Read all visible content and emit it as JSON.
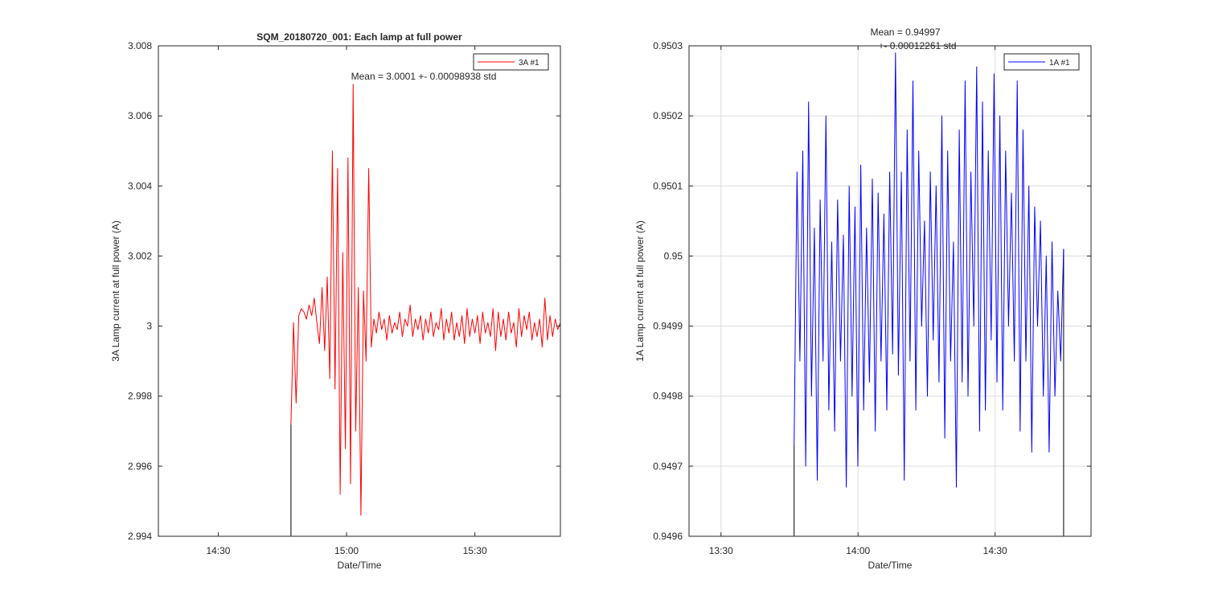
{
  "chart_data": [
    {
      "type": "line",
      "title": "SQM_20180720_001: Each lamp at full power",
      "xlabel": "Date/Time",
      "ylabel": "3A Lamp current at full power (A)",
      "xlim": [
        "14:16",
        "15:50"
      ],
      "ylim": [
        2.994,
        3.008
      ],
      "x_ticks": [
        "14:30",
        "15:00",
        "15:30"
      ],
      "y_ticks": [
        "2.994",
        "2.996",
        "2.998",
        "3",
        "3.002",
        "3.004",
        "3.006",
        "3.008"
      ],
      "grid": false,
      "legend_position": "top-right",
      "annotations": [
        "Mean = 3.0001 +- 0.00098938 std"
      ],
      "series": [
        {
          "name": "3A #1",
          "color": "#ff0000",
          "x_range": [
            "14:47",
            "15:50"
          ],
          "points": [
            [
              0,
              2.9972
            ],
            [
              1,
              3.0001
            ],
            [
              2,
              2.9978
            ],
            [
              3,
              3.0003
            ],
            [
              4,
              3.0005
            ],
            [
              5,
              3.0004
            ],
            [
              6,
              3.0002
            ],
            [
              7,
              3.0006
            ],
            [
              8,
              3.0003
            ],
            [
              9,
              3.0008
            ],
            [
              10,
              3.0001
            ],
            [
              11,
              2.9995
            ],
            [
              12,
              3.0011
            ],
            [
              13,
              2.9993
            ],
            [
              14,
              3.0014
            ],
            [
              15,
              2.9985
            ],
            [
              16,
              3.005
            ],
            [
              17,
              2.9982
            ],
            [
              18,
              3.0045
            ],
            [
              19,
              2.9952
            ],
            [
              20,
              3.0021
            ],
            [
              21,
              2.9965
            ],
            [
              22,
              3.0048
            ],
            [
              23,
              2.9955
            ],
            [
              24,
              3.0069
            ],
            [
              25,
              2.997
            ],
            [
              26,
              3.0011
            ],
            [
              27,
              2.9946
            ],
            [
              28,
              3.001
            ],
            [
              29,
              2.999
            ],
            [
              30,
              3.0045
            ],
            [
              31,
              2.9994
            ],
            [
              32,
              3.0002
            ],
            [
              33,
              2.9998
            ],
            [
              34,
              3.0004
            ],
            [
              35,
              2.9999
            ],
            [
              36,
              3.0002
            ],
            [
              37,
              2.9996
            ],
            [
              38,
              3.0003
            ],
            [
              39,
              2.9998
            ],
            [
              40,
              3.0001
            ],
            [
              41,
              2.9999
            ],
            [
              42,
              3.0004
            ],
            [
              43,
              2.9997
            ],
            [
              44,
              3.0002
            ],
            [
              45,
              3.0
            ],
            [
              46,
              3.0006
            ],
            [
              47,
              2.9997
            ],
            [
              48,
              3.0002
            ],
            [
              49,
              2.9999
            ],
            [
              50,
              3.0003
            ],
            [
              51,
              2.9996
            ],
            [
              52,
              3.0002
            ],
            [
              53,
              2.9998
            ],
            [
              54,
              3.0004
            ],
            [
              55,
              2.9997
            ],
            [
              56,
              3.0001
            ],
            [
              57,
              2.9999
            ],
            [
              58,
              3.0005
            ],
            [
              59,
              2.9996
            ],
            [
              60,
              3.0002
            ],
            [
              61,
              2.9998
            ],
            [
              62,
              3.0004
            ],
            [
              63,
              2.9996
            ],
            [
              64,
              3.0001
            ],
            [
              65,
              2.9997
            ],
            [
              66,
              3.0003
            ],
            [
              67,
              2.9995
            ],
            [
              68,
              3.0005
            ],
            [
              69,
              2.9997
            ],
            [
              70,
              3.0002
            ],
            [
              71,
              2.9998
            ],
            [
              72,
              3.0003
            ],
            [
              73,
              2.9995
            ],
            [
              74,
              3.0004
            ],
            [
              75,
              2.9998
            ],
            [
              76,
              3.0001
            ],
            [
              77,
              2.9997
            ],
            [
              78,
              3.0005
            ],
            [
              79,
              2.9993
            ],
            [
              80,
              3.0004
            ],
            [
              81,
              2.9997
            ],
            [
              82,
              3.0002
            ],
            [
              83,
              2.9996
            ],
            [
              84,
              3.0004
            ],
            [
              85,
              2.9998
            ],
            [
              86,
              3.0001
            ],
            [
              87,
              2.9994
            ],
            [
              88,
              3.0005
            ],
            [
              89,
              2.9997
            ],
            [
              90,
              3.0003
            ],
            [
              91,
              2.9999
            ],
            [
              92,
              3.0004
            ],
            [
              93,
              2.9996
            ],
            [
              94,
              3.0001
            ],
            [
              95,
              2.9997
            ],
            [
              96,
              3.0002
            ],
            [
              97,
              2.9994
            ],
            [
              98,
              3.0008
            ],
            [
              99,
              2.9996
            ],
            [
              100,
              3.0003
            ],
            [
              101,
              2.9997
            ],
            [
              102,
              3.0002
            ],
            [
              103,
              2.9999
            ],
            [
              104,
              3.0001
            ]
          ]
        }
      ]
    },
    {
      "type": "line",
      "xlabel": "Date/Time",
      "ylabel": "1A Lamp current at full power (A)",
      "xlim": [
        "13:23",
        "14:51"
      ],
      "ylim": [
        0.9496,
        0.9503
      ],
      "x_ticks": [
        "13:30",
        "14:00",
        "14:30"
      ],
      "y_ticks": [
        "0.9496",
        "0.9497",
        "0.9498",
        "0.9499",
        "0.95",
        "0.9501",
        "0.9502",
        "0.9503"
      ],
      "grid": true,
      "legend_position": "top-right",
      "annotations": [
        "Mean = 0.94997",
        "+- 0.00012261 std"
      ],
      "series": [
        {
          "name": "1A #1",
          "color": "#0000ff",
          "x_range": [
            "13:46",
            "14:45"
          ],
          "points": [
            [
              0,
              0.94973
            ],
            [
              1,
              0.95012
            ],
            [
              2,
              0.94985
            ],
            [
              3,
              0.95015
            ],
            [
              4,
              0.9497
            ],
            [
              5,
              0.95022
            ],
            [
              6,
              0.9498
            ],
            [
              7,
              0.95004
            ],
            [
              8,
              0.94968
            ],
            [
              9,
              0.95008
            ],
            [
              10,
              0.94985
            ],
            [
              11,
              0.9502
            ],
            [
              12,
              0.94978
            ],
            [
              13,
              0.95002
            ],
            [
              14,
              0.94975
            ],
            [
              15,
              0.95008
            ],
            [
              16,
              0.94985
            ],
            [
              17,
              0.95003
            ],
            [
              18,
              0.94967
            ],
            [
              19,
              0.9501
            ],
            [
              20,
              0.9498
            ],
            [
              21,
              0.95007
            ],
            [
              22,
              0.9497
            ],
            [
              23,
              0.95013
            ],
            [
              24,
              0.94978
            ],
            [
              25,
              0.95004
            ],
            [
              26,
              0.94982
            ],
            [
              27,
              0.95011
            ],
            [
              28,
              0.94975
            ],
            [
              29,
              0.95009
            ],
            [
              30,
              0.94985
            ],
            [
              31,
              0.95006
            ],
            [
              32,
              0.94978
            ],
            [
              33,
              0.95012
            ],
            [
              34,
              0.94986
            ],
            [
              35,
              0.95029
            ],
            [
              36,
              0.94983
            ],
            [
              37,
              0.95012
            ],
            [
              38,
              0.94968
            ],
            [
              39,
              0.95018
            ],
            [
              40,
              0.94985
            ],
            [
              41,
              0.95025
            ],
            [
              42,
              0.94978
            ],
            [
              43,
              0.95015
            ],
            [
              44,
              0.9499
            ],
            [
              45,
              0.95005
            ],
            [
              46,
              0.9498
            ],
            [
              47,
              0.95012
            ],
            [
              48,
              0.94988
            ],
            [
              49,
              0.9501
            ],
            [
              50,
              0.94982
            ],
            [
              51,
              0.9502
            ],
            [
              52,
              0.94974
            ],
            [
              53,
              0.95015
            ],
            [
              54,
              0.94985
            ],
            [
              55,
              0.95002
            ],
            [
              56,
              0.94967
            ],
            [
              57,
              0.95018
            ],
            [
              58,
              0.94982
            ],
            [
              59,
              0.95025
            ],
            [
              60,
              0.9498
            ],
            [
              61,
              0.95012
            ],
            [
              62,
              0.9499
            ],
            [
              63,
              0.95027
            ],
            [
              64,
              0.94975
            ],
            [
              65,
              0.95022
            ],
            [
              66,
              0.94978
            ],
            [
              67,
              0.95015
            ],
            [
              68,
              0.94988
            ],
            [
              69,
              0.95026
            ],
            [
              70,
              0.94982
            ],
            [
              71,
              0.9502
            ],
            [
              72,
              0.94978
            ],
            [
              73,
              0.95015
            ],
            [
              74,
              0.9499
            ],
            [
              75,
              0.95009
            ],
            [
              76,
              0.94985
            ],
            [
              77,
              0.95025
            ],
            [
              78,
              0.94975
            ],
            [
              79,
              0.95018
            ],
            [
              80,
              0.94985
            ],
            [
              81,
              0.9501
            ],
            [
              82,
              0.94972
            ],
            [
              83,
              0.95007
            ],
            [
              84,
              0.9499
            ],
            [
              85,
              0.95005
            ],
            [
              86,
              0.9498
            ],
            [
              87,
              0.95
            ],
            [
              88,
              0.94972
            ],
            [
              89,
              0.95002
            ],
            [
              90,
              0.9498
            ],
            [
              91,
              0.94995
            ],
            [
              92,
              0.94985
            ],
            [
              93,
              0.95001
            ]
          ]
        }
      ]
    }
  ]
}
